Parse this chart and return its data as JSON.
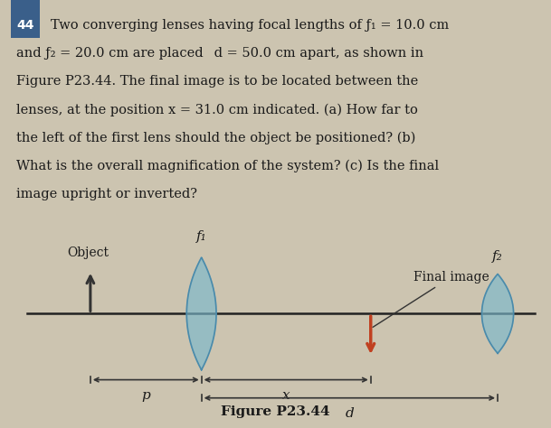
{
  "background_color": "#ccc4b0",
  "text_color": "#1a1a1a",
  "title_text": "Figure P23.44",
  "problem_number": "44",
  "problem_text_lines": [
    "Two converging lenses having focal lengths of ƒ₁ = 10.0 cm",
    "and ƒ₂ = 20.0 cm are placed  d = 50.0 cm apart, as shown in",
    "Figure P23.44. The final image is to be located between the",
    "lenses, at the position x = 31.0 cm indicated. (a) How far to",
    "the left of the first lens should the object be positioned? (b)",
    "What is the overall magnification of the system? (c) Is the final",
    "image upright or inverted?"
  ],
  "object_label": "Object",
  "final_image_label": "Final image",
  "f1_label": "f₁",
  "f2_label": "f₂",
  "p_label": "p",
  "x_label": "x",
  "d_label": "d",
  "lens_color": "#7ab8cc",
  "lens_edge_color": "#4a8aaa",
  "object_arrow_color": "#333333",
  "final_image_arrow_color": "#c04020",
  "dim_arrow_color": "#333333",
  "axis_color": "#222222",
  "annotation_line_color": "#333333",
  "number_box_color": "#3a5f8a",
  "fontsize_problem": 10.5,
  "fontsize_labels": 10,
  "fontsize_caption": 11
}
